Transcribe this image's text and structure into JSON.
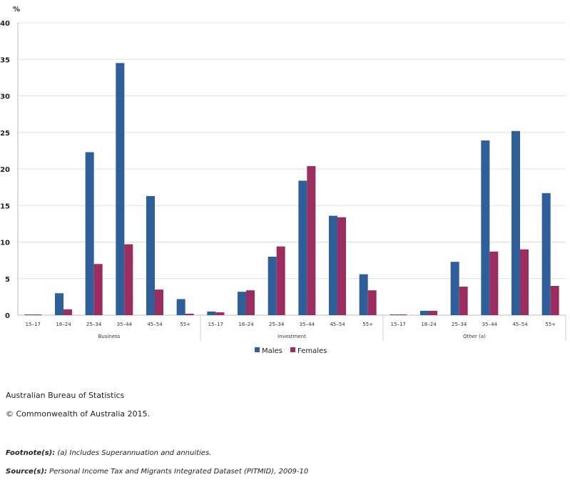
{
  "chart_data": {
    "type": "bar",
    "ylabel": "%",
    "ylim": [
      0,
      40
    ],
    "yticks": [
      0,
      5,
      10,
      15,
      20,
      25,
      30,
      35,
      40
    ],
    "grid": true,
    "legend": "bottom",
    "groups": [
      "Business",
      "Investment",
      "Other (a)"
    ],
    "categories": [
      "15–17",
      "18–24",
      "25–34",
      "35–44",
      "45–54",
      "55+"
    ],
    "series": [
      {
        "name": "Males",
        "color": "#2f5f98",
        "values": [
          [
            0.1,
            3.0,
            22.3,
            34.5,
            16.3,
            2.2
          ],
          [
            0.5,
            3.2,
            8.0,
            18.4,
            13.6,
            5.6
          ],
          [
            0.1,
            0.6,
            7.3,
            23.9,
            25.2,
            16.7
          ]
        ]
      },
      {
        "name": "Females",
        "color": "#9b2d5f",
        "values": [
          [
            0.1,
            0.8,
            7.0,
            9.7,
            3.5,
            0.2
          ],
          [
            0.4,
            3.4,
            9.4,
            20.4,
            13.4,
            3.4
          ],
          [
            0.1,
            0.6,
            3.9,
            8.7,
            9.0,
            4.0
          ]
        ]
      }
    ]
  },
  "footer": {
    "publisher": "Australian Bureau of Statistics",
    "copyright": "© Commonwealth of Australia 2015.",
    "footnote_label": "Footnote(s):",
    "footnote": " (a) Includes Superannuation and annuities.",
    "source_label": "Source(s):",
    "source": " Personal Income Tax and Migrants Integrated Dataset (PITMID), 2009-10"
  }
}
